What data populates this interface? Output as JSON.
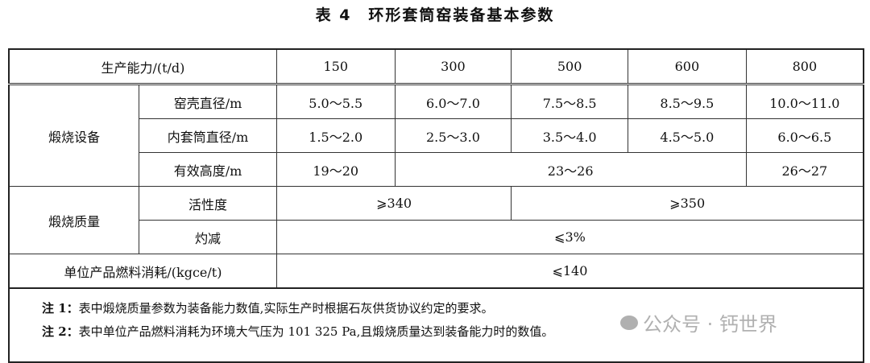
{
  "title": "表 4　环形套筒窑装备基本参数",
  "header": {
    "label": "生产能力/(t/d)",
    "capacities": [
      "150",
      "300",
      "500",
      "600",
      "800"
    ]
  },
  "calcination_equipment": {
    "group": "煅烧设备",
    "rows": [
      {
        "label": "窑壳直径/m",
        "values": [
          "5.0～5.5",
          "6.0～7.0",
          "7.5～8.5",
          "8.5～9.5",
          "10.0～11.0"
        ]
      },
      {
        "label": "内套筒直径/m",
        "values": [
          "1.5～2.0",
          "2.5～3.0",
          "3.5～4.0",
          "4.5～5.0",
          "6.0～6.5"
        ]
      },
      {
        "label": "有效高度/m",
        "values": [
          "19～20",
          "23～26",
          "26～27"
        ]
      }
    ]
  },
  "calcination_quality": {
    "group": "煅烧质量",
    "activity": {
      "label": "活性度",
      "values": [
        "⩾340",
        "⩾350"
      ]
    },
    "loss": {
      "label": "灼减",
      "value": "⩽3%"
    }
  },
  "fuel": {
    "label": "单位产品燃料消耗/(kgce/t)",
    "value": "⩽140"
  },
  "notes": [
    {
      "tag": "注 1：",
      "text": "表中煅烧质量参数为装备能力数值,实际生产时根据石灰供货协议约定的要求。"
    },
    {
      "tag": "注 2：",
      "text": "表中单位产品燃料消耗为环境大气压为 101 325 Pa,且煅烧质量达到装备能力时的数值。"
    }
  ],
  "watermark": "公众号 · 钙世界"
}
